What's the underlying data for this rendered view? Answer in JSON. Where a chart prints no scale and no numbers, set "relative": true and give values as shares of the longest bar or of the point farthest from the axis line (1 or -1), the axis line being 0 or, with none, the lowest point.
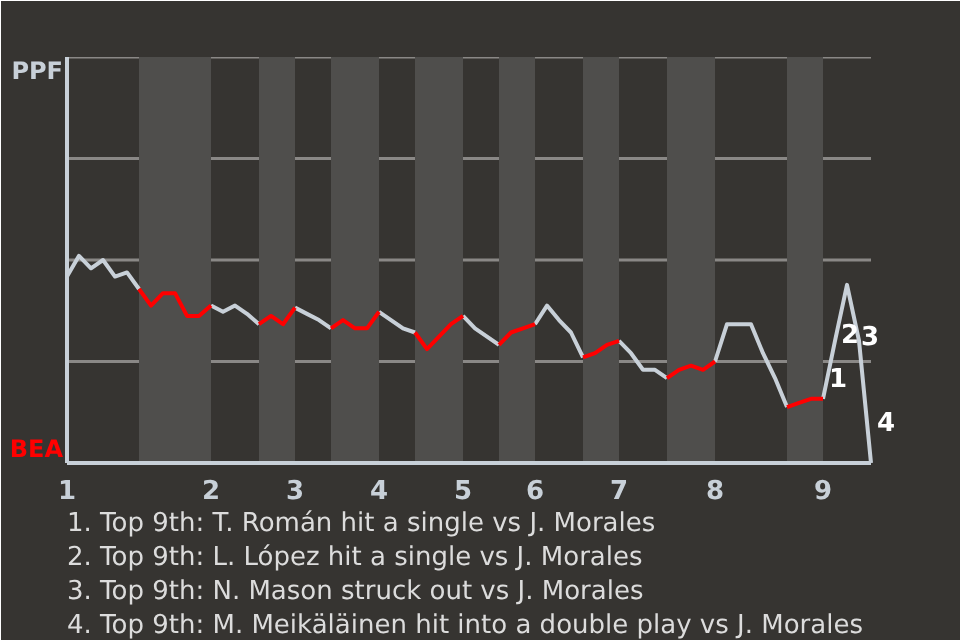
{
  "chart_data": {
    "type": "line",
    "relative": true,
    "marker": "none",
    "line_style": "solid",
    "ref_lines": [
      {
        "axis": "y",
        "value": 0.49,
        "color": "#8a8886"
      },
      {
        "axis": "y",
        "value": 0.98,
        "color": "#8a8886"
      },
      {
        "axis": "y",
        "value": 1.47,
        "color": "#8a8886"
      },
      {
        "axis": "y",
        "value": 1.96,
        "color": "#8a8886"
      }
    ],
    "categories": [
      "1",
      null,
      null,
      null,
      null,
      null,
      null,
      null,
      null,
      null,
      null,
      null,
      "2",
      null,
      null,
      null,
      null,
      null,
      null,
      "3",
      null,
      null,
      null,
      null,
      null,
      null,
      "4",
      null,
      null,
      null,
      null,
      null,
      null,
      "5",
      null,
      null,
      null,
      null,
      null,
      "6",
      null,
      null,
      null,
      null,
      null,
      null,
      "7",
      null,
      null,
      null,
      null,
      null,
      null,
      null,
      "8",
      null,
      null,
      null,
      null,
      null,
      null,
      null,
      null,
      "9",
      null,
      null,
      null,
      null
    ],
    "series": [
      {
        "color": "#c8d0d8",
        "values": [
          0.9,
          1,
          0.94,
          0.98,
          0.9,
          0.92,
          0.84,
          null,
          null,
          null,
          null,
          null,
          0.76,
          0.73,
          0.76,
          0.72,
          0.67,
          null,
          null,
          0.75,
          0.72,
          0.69,
          0.65,
          null,
          null,
          null,
          0.73,
          0.69,
          0.65,
          0.63,
          null,
          null,
          null,
          0.71,
          0.65,
          0.61,
          0.57,
          null,
          null,
          0.67,
          0.76,
          0.69,
          0.63,
          0.51,
          null,
          null,
          0.59,
          0.53,
          0.45,
          0.45,
          0.41,
          null,
          null,
          null,
          0.49,
          0.67,
          0.67,
          0.67,
          0.53,
          0.41,
          0.27,
          null,
          null,
          0.31,
          0.59,
          0.86,
          0.59,
          0
        ]
      },
      {
        "color": "#ff0000",
        "values": [
          null,
          null,
          null,
          null,
          null,
          null,
          0.84,
          0.76,
          0.82,
          0.82,
          0.71,
          0.71,
          0.76,
          null,
          null,
          null,
          0.67,
          0.71,
          0.67,
          0.75,
          null,
          null,
          0.65,
          0.69,
          0.65,
          0.65,
          0.73,
          null,
          null,
          0.63,
          0.55,
          0.61,
          0.67,
          0.71,
          null,
          null,
          0.57,
          0.63,
          0.65,
          0.67,
          null,
          null,
          null,
          0.51,
          0.53,
          0.57,
          0.59,
          null,
          null,
          null,
          0.41,
          0.45,
          0.47,
          0.45,
          0.49,
          null,
          null,
          null,
          null,
          null,
          0.27,
          0.29,
          0.31,
          0.31,
          null,
          null,
          null,
          null
        ]
      }
    ],
    "annotations": [
      "PPF",
      "BEA",
      "1",
      "2",
      "3",
      "4",
      "1. Top 9th: T. Román hit a single vs J. Morales",
      "2. Top 9th: L. López hit a single vs J. Morales",
      "3. Top 9th: N. Mason struck out vs J. Morales",
      "4. Top 9th: M. Meikäläinen hit into a double play vs J. Morales"
    ]
  }
}
